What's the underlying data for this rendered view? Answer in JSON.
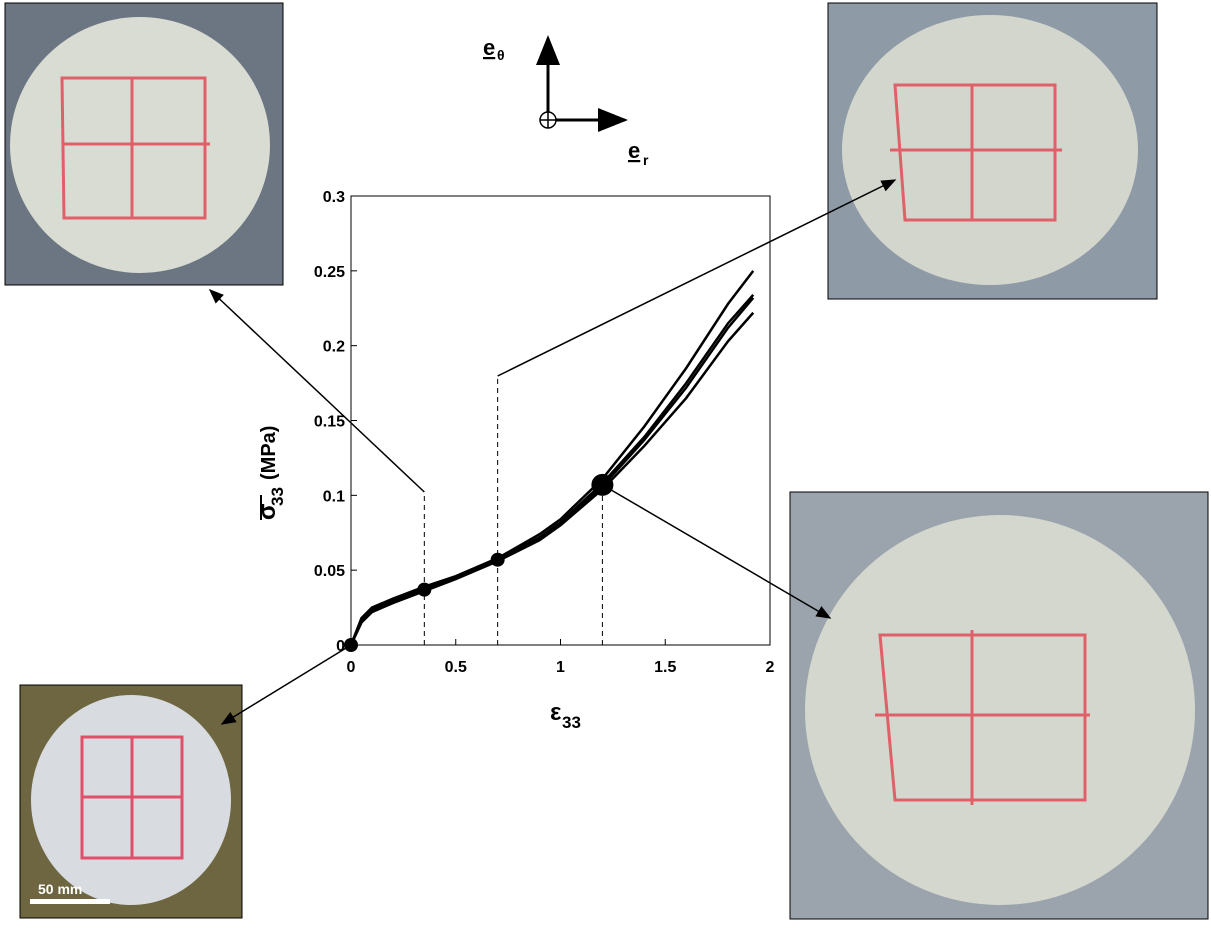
{
  "chart_data": {
    "type": "line",
    "x": [
      0,
      0.05,
      0.1,
      0.2,
      0.35,
      0.5,
      0.7,
      0.9,
      1.0,
      1.2,
      1.4,
      1.6,
      1.8,
      1.92
    ],
    "series": [
      {
        "color": "#000000",
        "values": [
          0,
          0.018,
          0.025,
          0.031,
          0.039,
          0.046,
          0.058,
          0.074,
          0.084,
          0.111,
          0.146,
          0.185,
          0.228,
          0.25
        ]
      },
      {
        "color": "#000000",
        "values": [
          0,
          0.017,
          0.024,
          0.03,
          0.038,
          0.045,
          0.057,
          0.072,
          0.082,
          0.108,
          0.139,
          0.175,
          0.215,
          0.234
        ]
      },
      {
        "color": "#000000",
        "values": [
          0,
          0.016,
          0.023,
          0.029,
          0.037,
          0.045,
          0.057,
          0.071,
          0.081,
          0.106,
          0.137,
          0.172,
          0.212,
          0.232
        ]
      },
      {
        "color": "#000000",
        "values": [
          0,
          0.015,
          0.022,
          0.028,
          0.036,
          0.044,
          0.056,
          0.07,
          0.08,
          0.104,
          0.133,
          0.165,
          0.203,
          0.222
        ]
      }
    ],
    "points": {
      "x": [
        0,
        0.35,
        0.7,
        1.2
      ],
      "y": [
        0,
        0.037,
        0.057,
        0.107
      ]
    },
    "xlim": [
      0,
      2
    ],
    "ylim": [
      0,
      0.3
    ],
    "xticks": [
      0,
      0.5,
      1,
      1.5,
      2
    ],
    "yticks": [
      0,
      0.05,
      0.1,
      0.15,
      0.2,
      0.25,
      0.3
    ],
    "x_label": "ε",
    "x_label_sub": "33",
    "y_label": "σ",
    "y_label_sub": "33",
    "y_label_unit": "(MPa)",
    "axis_theta": "e",
    "axis_theta_sub": "θ",
    "axis_r": "e",
    "axis_r_sub": "r",
    "scale_bar": "50 mm"
  }
}
